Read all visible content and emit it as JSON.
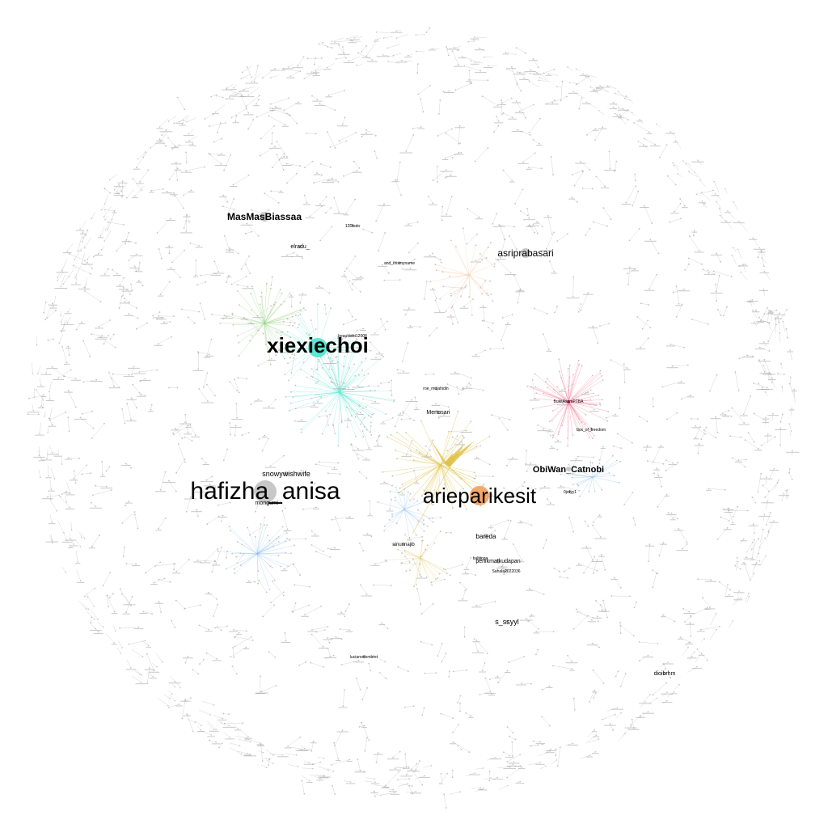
{
  "network": {
    "layout": "circular-force",
    "hubs": [
      {
        "id": "xiexiechoi",
        "label": "xiexiechoi",
        "size": "large",
        "color": "#5ee6d3"
      },
      {
        "id": "hafizha_anisa",
        "label": "hafizha_anisa",
        "size": "large",
        "color": "#c8c8c8"
      },
      {
        "id": "arieparikesit",
        "label": "arieparikesit",
        "size": "large",
        "color": "#f5a66a"
      },
      {
        "id": "MasMasBiassaa",
        "label": "MasMasBiassaa",
        "size": "medium",
        "color": "#c8c8c8"
      },
      {
        "id": "asriprabasari",
        "label": "asriprabasari",
        "size": "medium",
        "color": "#c8c8c8"
      },
      {
        "id": "ObiWan_Catnobi",
        "label": "ObiWan_Catnobi",
        "size": "medium",
        "color": "#c8c8c8"
      },
      {
        "id": "snowywishwife",
        "label": "snowywishwife",
        "size": "small",
        "color": "#c8c8c8"
      },
      {
        "id": "s_ssyyl",
        "label": "s_ssyyl",
        "size": "small",
        "color": "#c8c8c8"
      },
      {
        "id": "Mertosari",
        "label": "Mertosari",
        "size": "small",
        "color": "#c8c8c8"
      },
      {
        "id": "bareda",
        "label": "bareda",
        "size": "small",
        "color": "#c8c8c8"
      },
      {
        "id": "elradu_",
        "label": "elradu_",
        "size": "small",
        "color": "#c8c8c8"
      },
      {
        "id": "dioibrhm",
        "label": "dioibrhm",
        "size": "small",
        "color": "#c8c8c8"
      },
      {
        "id": "penikmatkudapan",
        "label": "penikmatkudapan",
        "size": "tiny",
        "color": "#c8c8c8"
      },
      {
        "id": "mongumi",
        "label": "mongumi",
        "size": "tiny",
        "color": "#c8c8c8"
      },
      {
        "id": "ainunnajib",
        "label": "ainunnajib",
        "size": "tiny",
        "color": "#c8c8c8"
      },
      {
        "id": "BukitAsamPTBA",
        "label": "BukitAsamPTBA",
        "size": "tiny",
        "color": "#e8446e"
      },
      {
        "id": "lucianodombret",
        "label": "lucianodombret",
        "size": "tiny",
        "color": "#c8c8c8"
      },
      {
        "id": "and_thismyname",
        "label": "and_thismyname",
        "size": "tiny",
        "color": "#c8c8c8"
      },
      {
        "id": "beautiient12008",
        "label": "beautiient12008",
        "size": "tiny",
        "color": "#c8c8c8"
      },
      {
        "id": "12Disdo",
        "label": "12Disdo",
        "size": "tiny",
        "color": "#c8c8c8"
      },
      {
        "id": "Sahala2022036",
        "label": "Sahala2022036",
        "size": "tiny",
        "color": "#c8c8c8"
      },
      {
        "id": "baliyoga",
        "label": "baliyoga",
        "size": "tiny",
        "color": "#c8c8c8"
      },
      {
        "id": "roe_mujahidin",
        "label": "roe_mujahidin",
        "size": "tiny",
        "color": "#c8c8c8"
      },
      {
        "id": "0jrdyy1",
        "label": "0jrdyy1",
        "size": "tiny",
        "color": "#c8c8c8"
      },
      {
        "id": "dox_of_freedom",
        "label": "dox_of_freedom",
        "size": "tiny",
        "color": "#c8c8c8"
      }
    ],
    "colors": {
      "edge_default": "#c9c9c9",
      "node_default": "#bdbdbd",
      "cluster_teal": "#5ee6d3",
      "cluster_green": "#8fd17a",
      "cluster_gold": "#e0c24a",
      "cluster_pink": "#f27a99",
      "cluster_blue": "#7fb5e8",
      "cluster_orange": "#f5b27a",
      "cluster_purple": "#b38ad8"
    }
  }
}
